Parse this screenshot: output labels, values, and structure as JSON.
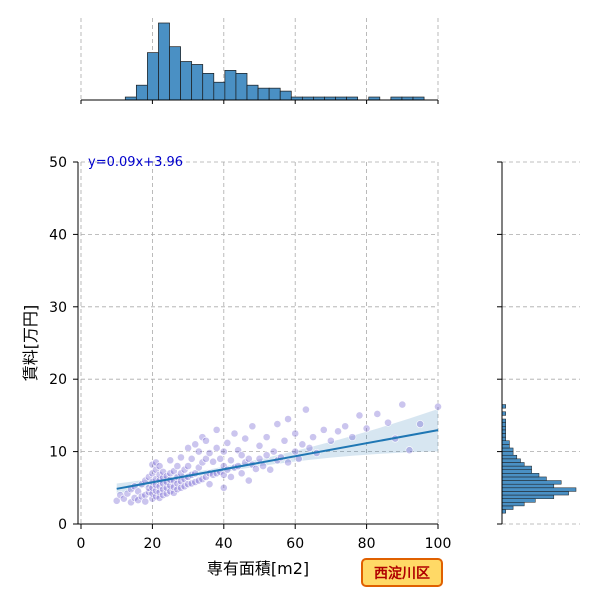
{
  "chart_data": {
    "type": "scatter",
    "xlabel": "専有面積[m2]",
    "ylabel": "賃料[万円]",
    "xlim": [
      0,
      100
    ],
    "ylim": [
      0,
      50
    ],
    "xticks": [
      0,
      20,
      40,
      60,
      80,
      100
    ],
    "yticks": [
      0,
      10,
      20,
      30,
      40,
      50
    ],
    "xtick_labels": [
      "0",
      "20",
      "40",
      "60",
      "80",
      "100"
    ],
    "ytick_labels": [
      "0",
      "10",
      "20",
      "30",
      "40",
      "50"
    ],
    "grid": true,
    "annotation": "y=0.09x+3.96",
    "badge": "西淀川区",
    "colors": {
      "points": "#6a5acd",
      "regression": "#1f77b4",
      "histogram": "#4a90c4",
      "badge_fill": "#ffd966",
      "badge_border": "#e06000",
      "annotation": "#0000cc"
    },
    "regression": {
      "slope": 0.09,
      "intercept": 3.96,
      "x_range": [
        10,
        100
      ]
    },
    "points": [
      [
        10,
        3.2
      ],
      [
        11,
        4.0
      ],
      [
        12,
        3.5
      ],
      [
        13,
        4.2
      ],
      [
        14,
        3.0
      ],
      [
        14,
        4.8
      ],
      [
        15,
        3.6
      ],
      [
        15,
        5.2
      ],
      [
        16,
        3.3
      ],
      [
        16,
        4.5
      ],
      [
        17,
        3.8
      ],
      [
        17,
        5.5
      ],
      [
        18,
        4.0
      ],
      [
        18,
        6.0
      ],
      [
        18,
        3.1
      ],
      [
        19,
        4.4
      ],
      [
        19,
        5.0
      ],
      [
        19,
        6.5
      ],
      [
        20,
        3.5
      ],
      [
        20,
        4.2
      ],
      [
        20,
        5.0
      ],
      [
        20,
        5.8
      ],
      [
        20,
        7.0
      ],
      [
        20,
        8.2
      ],
      [
        21,
        3.8
      ],
      [
        21,
        4.6
      ],
      [
        21,
        5.4
      ],
      [
        21,
        6.2
      ],
      [
        21,
        7.5
      ],
      [
        21,
        8.5
      ],
      [
        22,
        3.6
      ],
      [
        22,
        4.4
      ],
      [
        22,
        5.2
      ],
      [
        22,
        6.0
      ],
      [
        22,
        6.8
      ],
      [
        22,
        8.0
      ],
      [
        23,
        4.0
      ],
      [
        23,
        4.8
      ],
      [
        23,
        5.6
      ],
      [
        23,
        6.4
      ],
      [
        23,
        7.2
      ],
      [
        24,
        4.2
      ],
      [
        24,
        5.0
      ],
      [
        24,
        5.8
      ],
      [
        24,
        6.6
      ],
      [
        25,
        4.5
      ],
      [
        25,
        5.3
      ],
      [
        25,
        6.1
      ],
      [
        25,
        7.0
      ],
      [
        25,
        8.8
      ],
      [
        26,
        4.3
      ],
      [
        26,
        5.1
      ],
      [
        26,
        6.0
      ],
      [
        26,
        7.3
      ],
      [
        27,
        4.8
      ],
      [
        27,
        5.6
      ],
      [
        27,
        6.5
      ],
      [
        27,
        8.0
      ],
      [
        28,
        5.0
      ],
      [
        28,
        5.9
      ],
      [
        28,
        7.0
      ],
      [
        28,
        9.2
      ],
      [
        29,
        5.2
      ],
      [
        29,
        6.2
      ],
      [
        29,
        7.5
      ],
      [
        30,
        5.5
      ],
      [
        30,
        6.5
      ],
      [
        30,
        8.0
      ],
      [
        30,
        10.5
      ],
      [
        31,
        5.6
      ],
      [
        31,
        6.8
      ],
      [
        31,
        9.0
      ],
      [
        32,
        5.8
      ],
      [
        32,
        7.0
      ],
      [
        32,
        11.0
      ],
      [
        33,
        6.0
      ],
      [
        33,
        7.8
      ],
      [
        33,
        10.0
      ],
      [
        34,
        6.2
      ],
      [
        34,
        8.5
      ],
      [
        34,
        12.0
      ],
      [
        35,
        6.5
      ],
      [
        35,
        9.0
      ],
      [
        35,
        11.5
      ],
      [
        36,
        5.5
      ],
      [
        36,
        7.0
      ],
      [
        36,
        9.8
      ],
      [
        37,
        6.8
      ],
      [
        37,
        8.6
      ],
      [
        38,
        7.0
      ],
      [
        38,
        10.5
      ],
      [
        38,
        13.0
      ],
      [
        39,
        7.2
      ],
      [
        39,
        9.0
      ],
      [
        40,
        5.0
      ],
      [
        40,
        6.8
      ],
      [
        40,
        8.0
      ],
      [
        40,
        10.0
      ],
      [
        41,
        7.5
      ],
      [
        41,
        11.2
      ],
      [
        42,
        6.5
      ],
      [
        42,
        8.8
      ],
      [
        43,
        7.8
      ],
      [
        43,
        12.5
      ],
      [
        44,
        8.0
      ],
      [
        44,
        10.2
      ],
      [
        45,
        7.0
      ],
      [
        45,
        9.5
      ],
      [
        46,
        8.5
      ],
      [
        46,
        11.8
      ],
      [
        47,
        6.0
      ],
      [
        47,
        9.0
      ],
      [
        48,
        8.2
      ],
      [
        48,
        13.5
      ],
      [
        49,
        7.6
      ],
      [
        50,
        9.0
      ],
      [
        50,
        10.8
      ],
      [
        51,
        8.0
      ],
      [
        52,
        9.5
      ],
      [
        52,
        12.0
      ],
      [
        53,
        7.5
      ],
      [
        54,
        10.0
      ],
      [
        55,
        8.8
      ],
      [
        55,
        13.8
      ],
      [
        56,
        9.2
      ],
      [
        57,
        11.5
      ],
      [
        58,
        8.5
      ],
      [
        58,
        14.5
      ],
      [
        60,
        10.0
      ],
      [
        60,
        12.5
      ],
      [
        61,
        9.0
      ],
      [
        62,
        11.0
      ],
      [
        63,
        15.8
      ],
      [
        64,
        10.5
      ],
      [
        65,
        12.0
      ],
      [
        66,
        9.8
      ],
      [
        68,
        13.0
      ],
      [
        70,
        11.5
      ],
      [
        72,
        12.8
      ],
      [
        74,
        13.5
      ],
      [
        76,
        12.0
      ],
      [
        78,
        15.0
      ],
      [
        80,
        13.2
      ],
      [
        83,
        15.2
      ],
      [
        86,
        14.0
      ],
      [
        88,
        11.8
      ],
      [
        90,
        16.5
      ],
      [
        92,
        10.2
      ],
      [
        95,
        13.8
      ],
      [
        100,
        16.2
      ]
    ],
    "top_histogram": {
      "bin_edges": [
        0,
        3.1,
        6.2,
        9.3,
        12.4,
        15.5,
        18.6,
        21.7,
        24.8,
        27.9,
        31,
        34.1,
        37.2,
        40.3,
        43.4,
        46.5,
        49.6,
        52.7,
        55.8,
        58.9,
        62,
        65.1,
        68.2,
        71.3,
        74.4,
        77.5,
        80.6,
        83.7,
        86.8,
        89.9,
        93,
        96.1
      ],
      "counts": [
        0,
        0,
        0,
        0,
        1,
        5,
        16,
        26,
        18,
        13,
        12,
        9,
        6,
        10,
        9,
        5,
        4,
        4,
        3,
        1,
        1,
        1,
        1,
        1,
        1,
        0,
        1,
        0,
        1,
        1,
        1
      ]
    },
    "right_histogram": {
      "bin_edges": [
        1.5,
        2,
        2.5,
        3,
        3.5,
        4,
        4.5,
        5,
        5.5,
        6,
        6.5,
        7,
        7.5,
        8,
        8.5,
        9,
        9.5,
        10,
        10.5,
        11,
        11.5,
        12,
        12.5,
        13,
        13.5,
        14,
        14.5,
        15,
        15.5,
        16,
        16.5
      ],
      "counts": [
        1,
        3,
        6,
        9,
        14,
        18,
        20,
        14,
        16,
        12,
        10,
        8,
        8,
        6,
        5,
        4,
        3,
        3,
        2,
        2,
        1,
        1,
        1,
        1,
        1,
        1,
        0,
        1,
        0,
        1
      ]
    }
  }
}
